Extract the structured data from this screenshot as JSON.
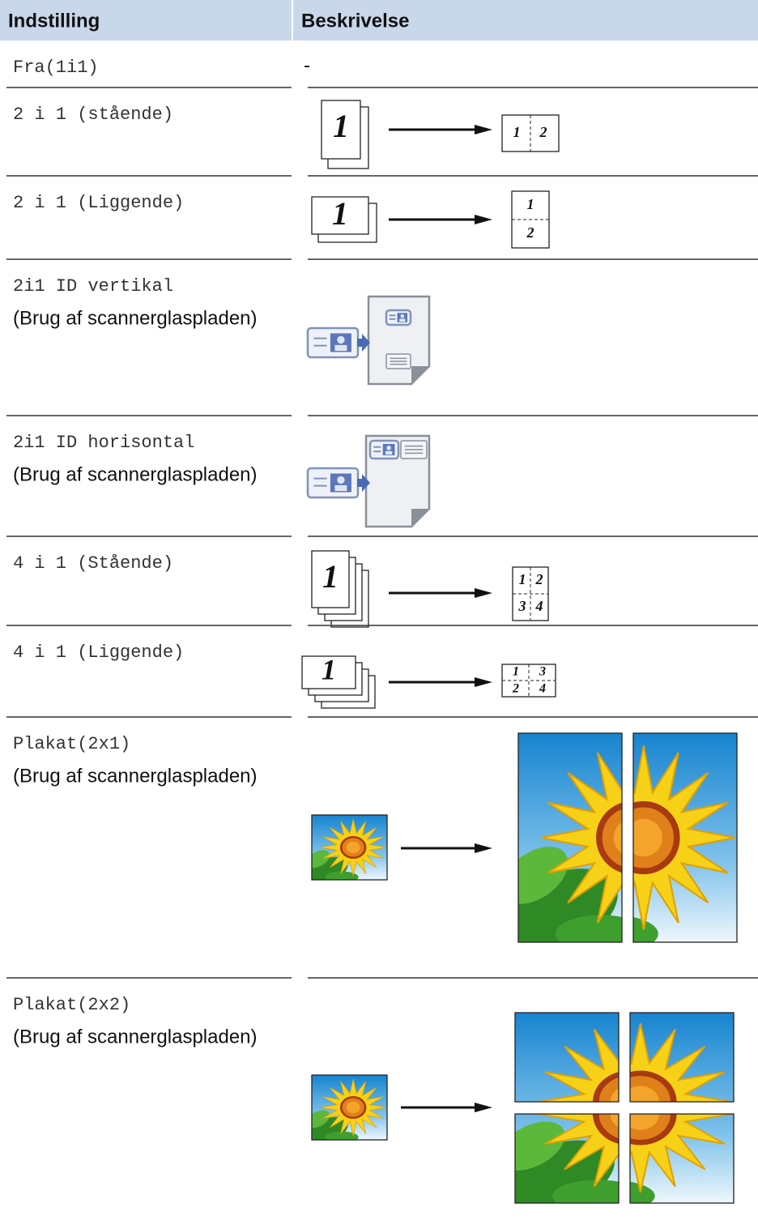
{
  "header": {
    "setting": "Indstilling",
    "description": "Beskrivelse"
  },
  "table": {
    "rows": [
      {
        "setting": "Fra(1i1)",
        "description": "-"
      },
      {
        "setting": "2 i 1 (stående)",
        "illustration": {
          "original": "1",
          "result": [
            "1",
            "2"
          ]
        }
      },
      {
        "setting": "2 i 1 (Liggende)",
        "illustration": {
          "original": "1",
          "result": [
            "1",
            "2"
          ]
        }
      },
      {
        "setting": "2i1 ID vertikal",
        "note": "(Brug af scannerglaspladen)"
      },
      {
        "setting": "2i1 ID horisontal",
        "note": "(Brug af scannerglaspladen)"
      },
      {
        "setting": "4 i 1 (Stående)",
        "illustration": {
          "original": "1",
          "result": [
            "1",
            "2",
            "3",
            "4"
          ]
        }
      },
      {
        "setting": "4 i 1 (Liggende)",
        "illustration": {
          "original": "1",
          "result": [
            "1",
            "3",
            "2",
            "4"
          ]
        }
      },
      {
        "setting": "Plakat(2x1)",
        "note": "(Brug af scannerglaspladen)"
      },
      {
        "setting": "Plakat(2x2)",
        "note": "(Brug af scannerglaspladen)"
      }
    ]
  }
}
